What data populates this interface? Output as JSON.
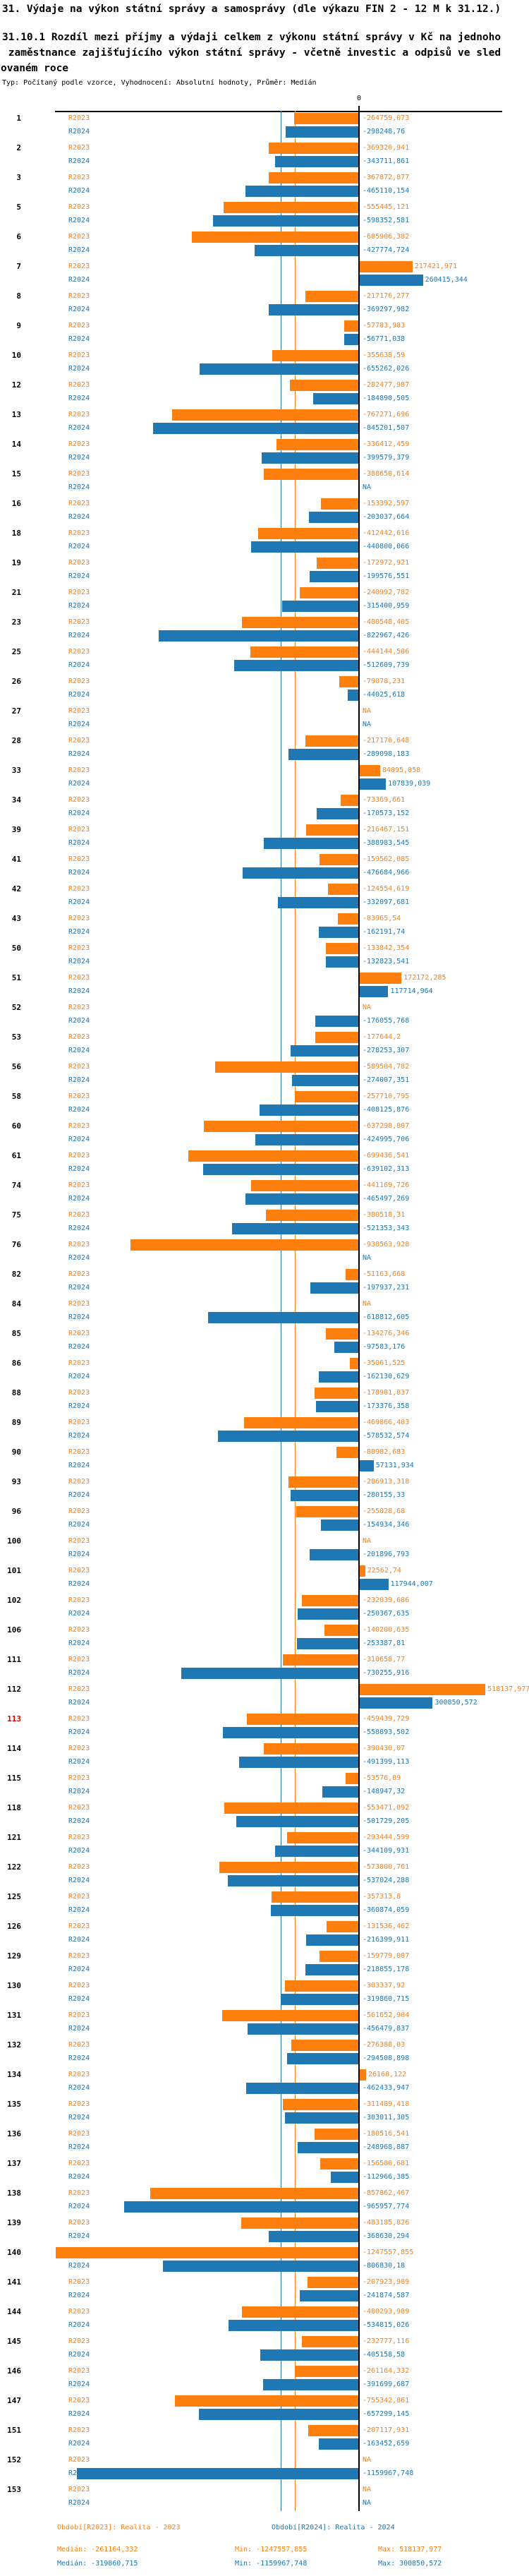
{
  "header": {
    "title": "31. Výdaje na výkon státní správy a samosprávy (dle výkazu FIN 2 - 12 M k 31.12.)",
    "subtitle_lines": [
      "31.10.1 Rozdíl mezi příjmy a výdaji celkem z výkonu státní správy v Kč na jednoho",
      " zaměstnance zajišťujícího výkon státní správy - včetně investic a odpisů ve sled",
      "ovaném roce"
    ],
    "meta": "Typ: Počítaný podle vzorce, Vyhodnocení: Absolutní hodnoty, Průměr: Medián"
  },
  "series_labels": {
    "r2023": "R2023",
    "r2024": "R2024"
  },
  "axis": {
    "zero_label": "0"
  },
  "na_text": "NA",
  "colors": {
    "r2023": "#ff7f0e",
    "r2024": "#1f77b4",
    "highlight_row_number": "#e00000",
    "axis": "#000000"
  },
  "legend": {
    "r2023": {
      "label": "Období[R2023]: Realita - 2023",
      "median": "Medián: -261164,332",
      "min": "Min: -1247557,855",
      "max": "Max: 518137,977"
    },
    "r2024": {
      "label": "Období[R2024]: Realita - 2024",
      "median": "Medián: -319860,715",
      "min": "Min: -1159967,748",
      "max": "Max: 300850,572"
    }
  },
  "chart_data": {
    "type": "bar",
    "orientation": "horizontal",
    "unit": "Kč",
    "title": "31.10.1 Rozdíl mezi příjmy a výdaji celkem z výkonu státní správy v Kč na jednoho zaměstnance zajišťujícího výkon státní správy - včetně investic a odpisů ve sledovaném roce",
    "series": [
      {
        "key": "r2023",
        "name": "Období[R2023]: Realita - 2023",
        "color": "#ff7f0e"
      },
      {
        "key": "r2024",
        "name": "Období[R2024]: Realita - 2024",
        "color": "#1f77b4"
      }
    ],
    "highlighted_id": "113",
    "stats": {
      "r2023": {
        "median": -261164.332,
        "min": -1247557.855,
        "max": 518137.977
      },
      "r2024": {
        "median": -319860.715,
        "min": -1159967.748,
        "max": 300850.572
      }
    },
    "xlim": [
      -1250000,
      520000
    ],
    "rows": [
      {
        "id": "1",
        "r2023": -264759.073,
        "r2024": -298248.76
      },
      {
        "id": "2",
        "r2023": -369320.941,
        "r2024": -343711.861
      },
      {
        "id": "3",
        "r2023": -367872.877,
        "r2024": -465110.154
      },
      {
        "id": "5",
        "r2023": -555445.121,
        "r2024": -598352.581
      },
      {
        "id": "6",
        "r2023": -685906.382,
        "r2024": -427774.724
      },
      {
        "id": "7",
        "r2023": 217421.971,
        "r2024": 260415.344
      },
      {
        "id": "8",
        "r2023": -217176.277,
        "r2024": -369297.982
      },
      {
        "id": "9",
        "r2023": -57783.983,
        "r2024": -56771.038
      },
      {
        "id": "10",
        "r2023": -355638.59,
        "r2024": -655262.026
      },
      {
        "id": "12",
        "r2023": -282477.987,
        "r2024": -184890.505
      },
      {
        "id": "13",
        "r2023": -767271.696,
        "r2024": -845201.507
      },
      {
        "id": "14",
        "r2023": -336412.459,
        "r2024": -399579.379
      },
      {
        "id": "15",
        "r2023": -388650.614,
        "r2024": null
      },
      {
        "id": "16",
        "r2023": -153392.597,
        "r2024": -203037.664
      },
      {
        "id": "18",
        "r2023": -412442.616,
        "r2024": -440800.066
      },
      {
        "id": "19",
        "r2023": -172972.921,
        "r2024": -199576.551
      },
      {
        "id": "21",
        "r2023": -240992.782,
        "r2024": -315400.959
      },
      {
        "id": "23",
        "r2023": -480548.405,
        "r2024": -822967.426
      },
      {
        "id": "25",
        "r2023": -444144.506,
        "r2024": -512609.739
      },
      {
        "id": "26",
        "r2023": -79078.231,
        "r2024": -44025.618
      },
      {
        "id": "27",
        "r2023": null,
        "r2024": null
      },
      {
        "id": "28",
        "r2023": -217170.648,
        "r2024": -289098.183
      },
      {
        "id": "33",
        "r2023": 84095.058,
        "r2024": 107839.039
      },
      {
        "id": "34",
        "r2023": -73369.661,
        "r2024": -170573.152
      },
      {
        "id": "39",
        "r2023": -216467.151,
        "r2024": -388983.545
      },
      {
        "id": "41",
        "r2023": -159562.085,
        "r2024": -476684.966
      },
      {
        "id": "42",
        "r2023": -124554.619,
        "r2024": -332097.681
      },
      {
        "id": "43",
        "r2023": -83965.54,
        "r2024": -162191.74
      },
      {
        "id": "50",
        "r2023": -133842.354,
        "r2024": -132823.541
      },
      {
        "id": "51",
        "r2023": 172172.285,
        "r2024": 117714.964
      },
      {
        "id": "52",
        "r2023": null,
        "r2024": -176055.768
      },
      {
        "id": "53",
        "r2023": -177644.2,
        "r2024": -278253.307
      },
      {
        "id": "56",
        "r2023": -589504.782,
        "r2024": -274007.351
      },
      {
        "id": "58",
        "r2023": -257710.795,
        "r2024": -408125.876
      },
      {
        "id": "60",
        "r2023": -637298.807,
        "r2024": -424995.706
      },
      {
        "id": "61",
        "r2023": -699436.541,
        "r2024": -639102.313
      },
      {
        "id": "74",
        "r2023": -441169.726,
        "r2024": -465497.269
      },
      {
        "id": "75",
        "r2023": -380518.31,
        "r2024": -521353.343
      },
      {
        "id": "76",
        "r2023": -938563.928,
        "r2024": null
      },
      {
        "id": "82",
        "r2023": -51163.668,
        "r2024": -197937.231
      },
      {
        "id": "84",
        "r2023": null,
        "r2024": -618812.605
      },
      {
        "id": "85",
        "r2023": -134276.346,
        "r2024": -97583.176
      },
      {
        "id": "86",
        "r2023": -35061.525,
        "r2024": -162130.629
      },
      {
        "id": "88",
        "r2023": -178981.837,
        "r2024": -173376.358
      },
      {
        "id": "89",
        "r2023": -469866.403,
        "r2024": -578532.574
      },
      {
        "id": "90",
        "r2023": -88982.683,
        "r2024": 57131.934
      },
      {
        "id": "93",
        "r2023": -286913.318,
        "r2024": -280155.33
      },
      {
        "id": "96",
        "r2023": -255028.68,
        "r2024": -154934.346
      },
      {
        "id": "100",
        "r2023": null,
        "r2024": -201896.793
      },
      {
        "id": "101",
        "r2023": 22562.74,
        "r2024": 117944.007
      },
      {
        "id": "102",
        "r2023": -232039.686,
        "r2024": -250367.635
      },
      {
        "id": "106",
        "r2023": -140200.635,
        "r2024": -253387.81
      },
      {
        "id": "111",
        "r2023": -310658.77,
        "r2024": -730255.916
      },
      {
        "id": "112",
        "r2023": 518137.977,
        "r2024": 300850.572
      },
      {
        "id": "113",
        "r2023": -459439.729,
        "r2024": -558893.502
      },
      {
        "id": "114",
        "r2023": -390430.07,
        "r2024": -491399.113
      },
      {
        "id": "115",
        "r2023": -53576.89,
        "r2024": -148947.32
      },
      {
        "id": "118",
        "r2023": -553471.092,
        "r2024": -501729.205
      },
      {
        "id": "121",
        "r2023": -293444.599,
        "r2024": -344109.931
      },
      {
        "id": "122",
        "r2023": -573800.761,
        "r2024": -537024.288
      },
      {
        "id": "125",
        "r2023": -357313.8,
        "r2024": -360874.059
      },
      {
        "id": "126",
        "r2023": -131536.462,
        "r2024": -216399.911
      },
      {
        "id": "129",
        "r2023": -159779.087,
        "r2024": -218855.178
      },
      {
        "id": "130",
        "r2023": -303337.92,
        "r2024": -319860.715
      },
      {
        "id": "131",
        "r2023": -561652.904,
        "r2024": -456479.837
      },
      {
        "id": "132",
        "r2023": -276388.03,
        "r2024": -294508.898
      },
      {
        "id": "134",
        "r2023": 26168.122,
        "r2024": -462433.947
      },
      {
        "id": "135",
        "r2023": -311489.418,
        "r2024": -303011.305
      },
      {
        "id": "136",
        "r2023": -180516.541,
        "r2024": -248968.887
      },
      {
        "id": "137",
        "r2023": -156500.681,
        "r2024": -112966.385
      },
      {
        "id": "138",
        "r2023": -857862.467,
        "r2024": -965957.774
      },
      {
        "id": "139",
        "r2023": -483185.826,
        "r2024": -368630.294
      },
      {
        "id": "140",
        "r2023": -1247557.855,
        "r2024": -806830.18
      },
      {
        "id": "141",
        "r2023": -207923.989,
        "r2024": -241874.587
      },
      {
        "id": "144",
        "r2023": -480293.989,
        "r2024": -534815.026
      },
      {
        "id": "145",
        "r2023": -232777.116,
        "r2024": -405158.58
      },
      {
        "id": "146",
        "r2023": -261164.332,
        "r2024": -391699.687
      },
      {
        "id": "147",
        "r2023": -755342.861,
        "r2024": -657299.145
      },
      {
        "id": "151",
        "r2023": -207117.931,
        "r2024": -163452.659
      },
      {
        "id": "152",
        "r2023": null,
        "r2024": -1159967.748
      },
      {
        "id": "153",
        "r2023": null,
        "r2024": null
      }
    ]
  }
}
